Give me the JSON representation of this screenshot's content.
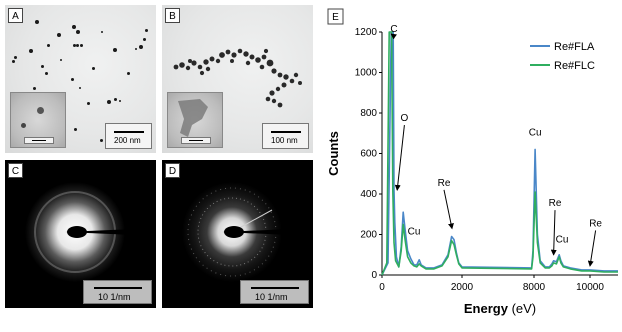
{
  "panels": {
    "a": {
      "label": "A",
      "scale": "200 nm",
      "inset_scale": "40 nm"
    },
    "b": {
      "label": "B",
      "scale": "100 nm",
      "inset_scale": "40 nm"
    },
    "c": {
      "label": "C",
      "scale": "10 1/nm"
    },
    "d": {
      "label": "D",
      "scale": "10 1/nm"
    },
    "e": {
      "label": "E"
    }
  },
  "colors": {
    "fla": "#4a87c8",
    "flc": "#2fae5f"
  },
  "chart_data": {
    "type": "line",
    "xlabel": "Energy",
    "xlabel_unit": "(eV)",
    "ylabel": "Counts",
    "xlim": [
      0,
      11000
    ],
    "ylim": [
      0,
      1200
    ],
    "x_scale_note": "axis tick 2000 and 8000 are adjacent; region 2000-8000 compressed",
    "xticks": [
      0,
      2000,
      8000,
      10000
    ],
    "xtick_labels": [
      "0",
      "2000",
      "8000",
      "10000"
    ],
    "yticks": [
      0,
      200,
      400,
      600,
      800,
      1000,
      1200
    ],
    "ytick_labels": [
      "0",
      "200",
      "400",
      "600",
      "800",
      "1000",
      "1200"
    ],
    "legend_position": "top-right",
    "series": [
      {
        "name": "Re#FLA",
        "points": [
          [
            0,
            0
          ],
          [
            150,
            60
          ],
          [
            230,
            1200
          ],
          [
            280,
            1200
          ],
          [
            300,
            420
          ],
          [
            320,
            260
          ],
          [
            360,
            90
          ],
          [
            420,
            40
          ],
          [
            480,
            140
          ],
          [
            530,
            310
          ],
          [
            580,
            220
          ],
          [
            640,
            120
          ],
          [
            720,
            80
          ],
          [
            800,
            50
          ],
          [
            870,
            50
          ],
          [
            930,
            75
          ],
          [
            980,
            50
          ],
          [
            1100,
            35
          ],
          [
            1300,
            35
          ],
          [
            1500,
            50
          ],
          [
            1650,
            100
          ],
          [
            1740,
            190
          ],
          [
            1800,
            175
          ],
          [
            1860,
            110
          ],
          [
            1920,
            60
          ],
          [
            2000,
            40
          ],
          [
            7800,
            35
          ],
          [
            7920,
            120
          ],
          [
            8040,
            620
          ],
          [
            8120,
            200
          ],
          [
            8220,
            70
          ],
          [
            8400,
            40
          ],
          [
            8550,
            40
          ],
          [
            8640,
            55
          ],
          [
            8700,
            70
          ],
          [
            8800,
            65
          ],
          [
            8900,
            100
          ],
          [
            8960,
            70
          ],
          [
            9050,
            45
          ],
          [
            9300,
            35
          ],
          [
            9700,
            25
          ],
          [
            10000,
            25
          ],
          [
            10500,
            20
          ],
          [
            11000,
            20
          ]
        ]
      },
      {
        "name": "Re#FLC",
        "points": [
          [
            0,
            0
          ],
          [
            120,
            60
          ],
          [
            180,
            1200
          ],
          [
            240,
            1200
          ],
          [
            270,
            420
          ],
          [
            300,
            160
          ],
          [
            340,
            70
          ],
          [
            420,
            40
          ],
          [
            480,
            120
          ],
          [
            530,
            250
          ],
          [
            580,
            170
          ],
          [
            640,
            90
          ],
          [
            720,
            60
          ],
          [
            800,
            45
          ],
          [
            870,
            40
          ],
          [
            930,
            55
          ],
          [
            980,
            45
          ],
          [
            1100,
            30
          ],
          [
            1300,
            30
          ],
          [
            1500,
            45
          ],
          [
            1650,
            90
          ],
          [
            1740,
            170
          ],
          [
            1800,
            150
          ],
          [
            1860,
            100
          ],
          [
            1920,
            55
          ],
          [
            2000,
            35
          ],
          [
            7800,
            30
          ],
          [
            7920,
            90
          ],
          [
            8040,
            410
          ],
          [
            8120,
            160
          ],
          [
            8220,
            60
          ],
          [
            8400,
            35
          ],
          [
            8550,
            35
          ],
          [
            8640,
            45
          ],
          [
            8700,
            60
          ],
          [
            8800,
            55
          ],
          [
            8900,
            90
          ],
          [
            8960,
            60
          ],
          [
            9050,
            40
          ],
          [
            9300,
            30
          ],
          [
            9700,
            20
          ],
          [
            10000,
            20
          ],
          [
            10500,
            15
          ],
          [
            11000,
            15
          ]
        ]
      }
    ],
    "annotations": [
      {
        "text": "C",
        "x": 300,
        "y": 1200,
        "arrow_to": [
          230,
          1190
        ]
      },
      {
        "text": "O",
        "x": 560,
        "y": 760,
        "arrow_to": [
          380,
          420
        ]
      },
      {
        "text": "Cu",
        "x": 800,
        "y": 200
      },
      {
        "text": "Re",
        "x": 1550,
        "y": 440,
        "arrow_to": [
          1750,
          230
        ]
      },
      {
        "text": "Cu",
        "x": 8040,
        "y": 690
      },
      {
        "text": "Re",
        "x": 8750,
        "y": 340,
        "arrow_to": [
          8700,
          100
        ]
      },
      {
        "text": "Cu",
        "x": 9000,
        "y": 160
      },
      {
        "text": "Re",
        "x": 10200,
        "y": 240,
        "arrow_to": [
          10000,
          45
        ]
      }
    ]
  }
}
